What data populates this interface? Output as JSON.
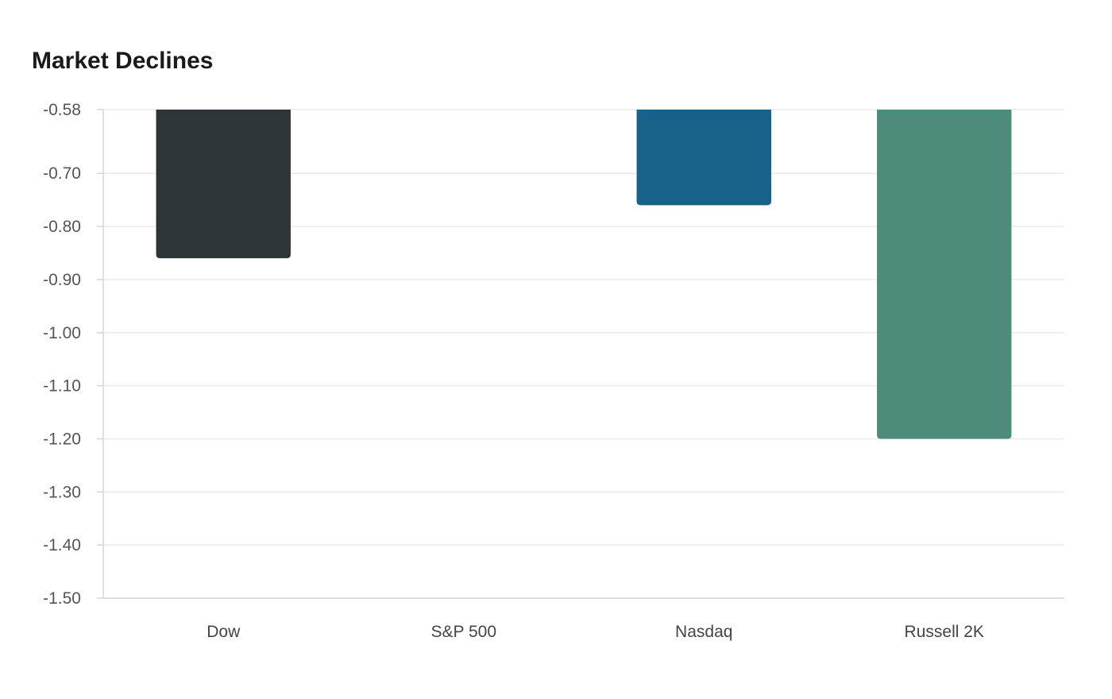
{
  "chart_data": {
    "type": "bar",
    "title": "Market Declines",
    "xlabel": "",
    "ylabel": "",
    "categories": [
      "Dow",
      "S&P 500",
      "Nasdaq",
      "Russell 2K"
    ],
    "values": [
      -0.86,
      null,
      -0.76,
      -1.2
    ],
    "colors": [
      "#2d3538",
      null,
      "#186189",
      "#4d8b7a"
    ],
    "ylim": [
      -1.5,
      -0.58
    ],
    "yticks": [
      -0.58,
      -0.7,
      -0.8,
      -0.9,
      -1.0,
      -1.1,
      -1.2,
      -1.3,
      -1.4,
      -1.5
    ],
    "ytick_labels": [
      "-0.58",
      "-0.70",
      "-0.80",
      "-0.90",
      "-1.00",
      "-1.10",
      "-1.20",
      "-1.30",
      "-1.40",
      "-1.50"
    ],
    "grid": true,
    "legend": "none",
    "grid_color": "#ebebeb",
    "axis_color": "#d6d6d6"
  }
}
